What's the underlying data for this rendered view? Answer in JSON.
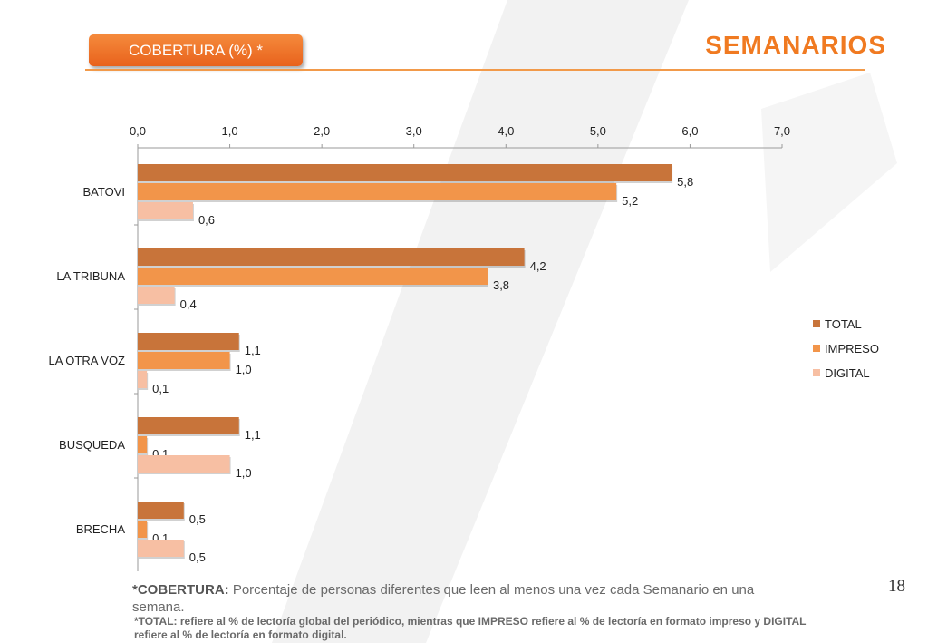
{
  "header": {
    "badge_label": "COBERTURA  (%) *",
    "title": "SEMANARIOS"
  },
  "page_number": "18",
  "footnotes": {
    "definition_term": "*COBERTURA:",
    "definition_text": " Porcentaje de personas diferentes que leen al menos una vez cada Semanario en una semana.",
    "note": "*TOTAL: refiere al % de lectoría global del periódico, mientras que IMPRESO refiere al % de lectoría en formato impreso y DIGITAL refiere al % de lectoría en formato digital."
  },
  "colors": {
    "accent": "#f07a21",
    "total": "#c8743a",
    "impreso": "#f2954a",
    "digital": "#f7bfa3"
  },
  "chart_data": {
    "type": "bar",
    "orientation": "horizontal",
    "categories": [
      "BATOVI",
      "LA TRIBUNA",
      "LA OTRA VOZ",
      "BUSQUEDA",
      "BRECHA"
    ],
    "series": [
      {
        "name": "TOTAL",
        "values": [
          5.8,
          4.2,
          1.1,
          1.1,
          0.5
        ]
      },
      {
        "name": "IMPRESO",
        "values": [
          5.2,
          3.8,
          1.0,
          0.1,
          0.1
        ]
      },
      {
        "name": "DIGITAL",
        "values": [
          0.6,
          0.4,
          0.1,
          1.0,
          0.5
        ]
      }
    ],
    "data_labels": [
      [
        "5,8",
        "4,2",
        "1,1",
        "1,1",
        "0,5"
      ],
      [
        "5,2",
        "3,8",
        "1,0",
        "0,1",
        "0,1"
      ],
      [
        "0,6",
        "0,4",
        "0,1",
        "1,0",
        "0,5"
      ]
    ],
    "tick_labels": [
      "0,0",
      "1,0",
      "2,0",
      "3,0",
      "4,0",
      "5,0",
      "6,0",
      "7,0"
    ],
    "xlim": [
      0,
      7
    ],
    "xaxis_position": "top",
    "grid": false,
    "legend_position": "right"
  }
}
